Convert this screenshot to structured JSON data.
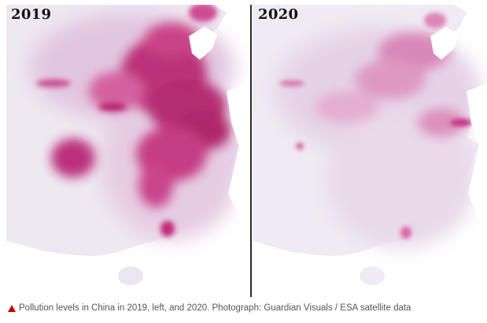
{
  "panels": [
    {
      "year": "2019",
      "level": "high"
    },
    {
      "year": "2020",
      "level": "low"
    }
  ],
  "caption": {
    "icon": "triangle-icon",
    "text": "Pollution levels in China in 2019, left, and 2020. Photograph: Guardian Visuals / ESA satellite data"
  },
  "colors": {
    "pollution": "#c0136e",
    "land": "#ece6f0",
    "caption_icon": "#c70000"
  }
}
